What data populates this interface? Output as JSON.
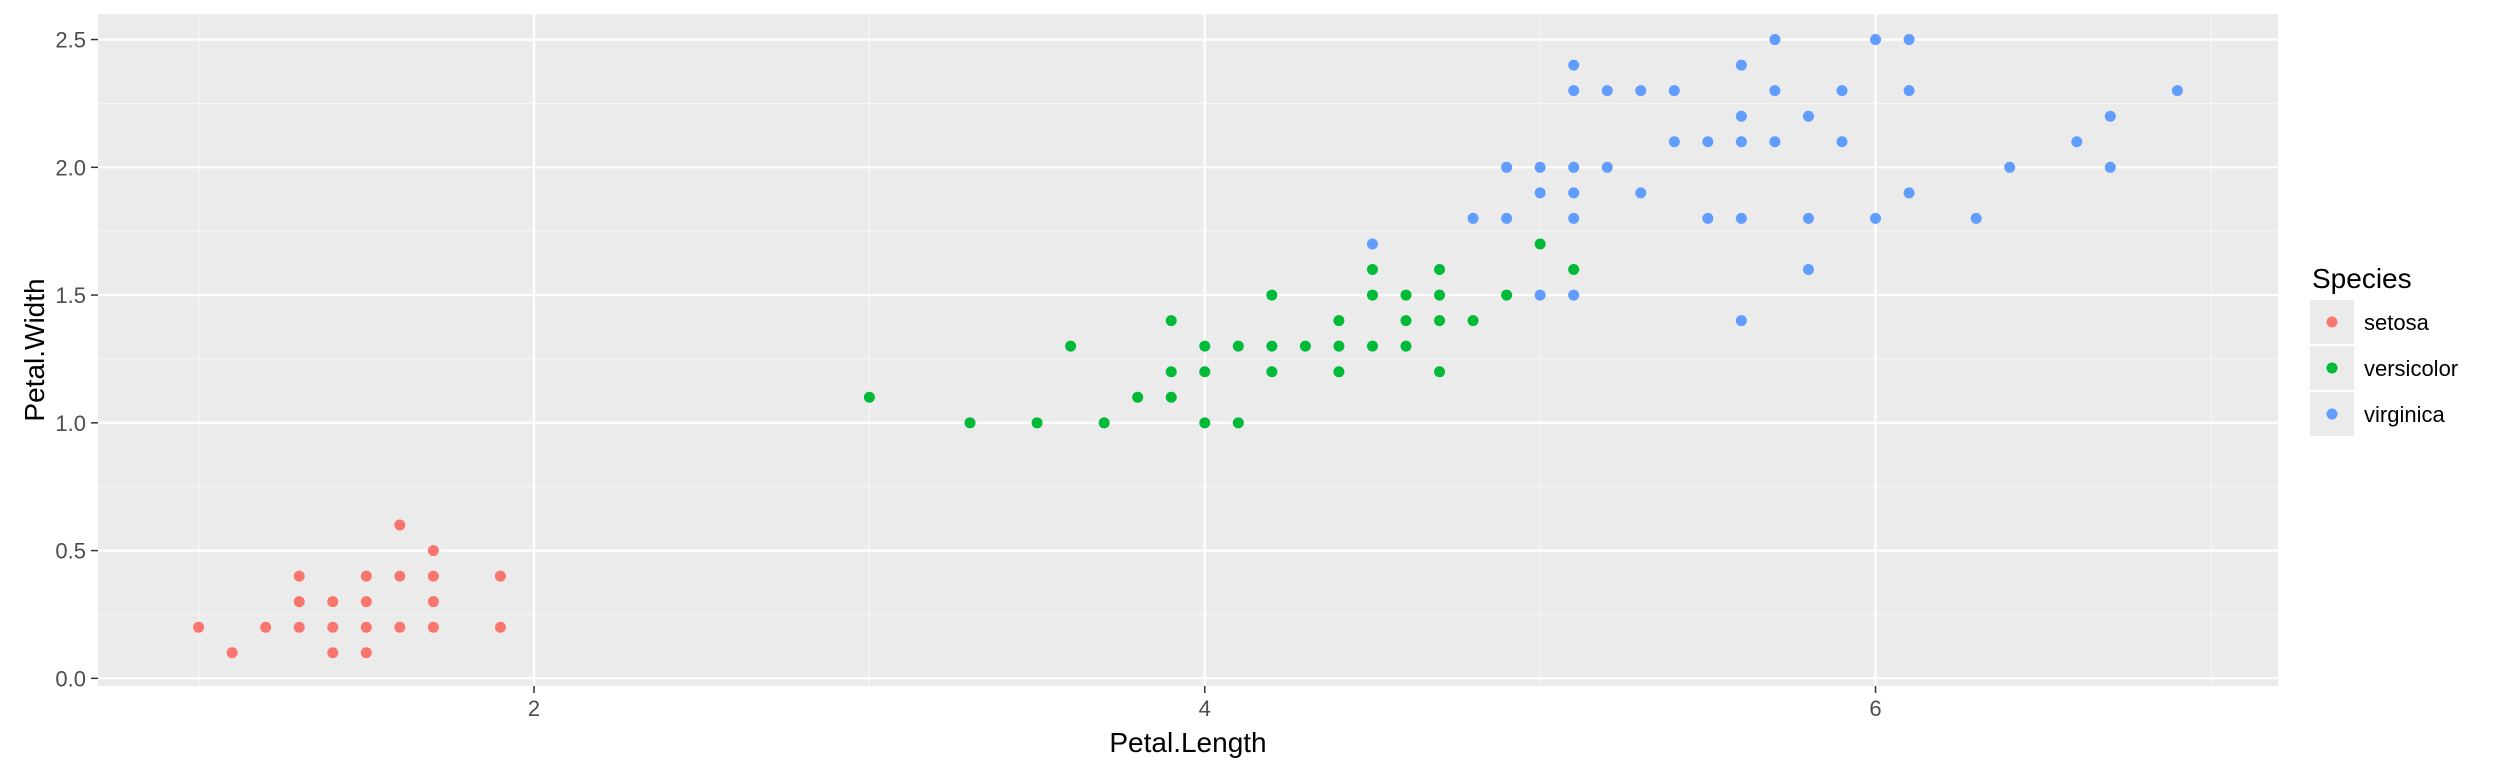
{
  "chart_data": {
    "type": "scatter",
    "xlabel": "Petal.Length",
    "ylabel": "Petal.Width",
    "xlim": [
      0.7,
      7.2
    ],
    "ylim": [
      -0.03,
      2.6
    ],
    "x_ticks": [
      2,
      4,
      6
    ],
    "x_tick_labels": [
      "2",
      "4",
      "6"
    ],
    "y_ticks": [
      0.0,
      0.5,
      1.0,
      1.5,
      2.0,
      2.5
    ],
    "y_tick_labels": [
      "0.0",
      "0.5",
      "1.0",
      "1.5",
      "2.0",
      "2.5"
    ],
    "grid": true,
    "legend": {
      "title": "Species",
      "position": "right"
    },
    "series": [
      {
        "name": "setosa",
        "color": "#F8766D",
        "points": [
          [
            1.0,
            0.2
          ],
          [
            1.1,
            0.1
          ],
          [
            1.2,
            0.2
          ],
          [
            1.3,
            0.2
          ],
          [
            1.3,
            0.3
          ],
          [
            1.3,
            0.4
          ],
          [
            1.4,
            0.1
          ],
          [
            1.4,
            0.2
          ],
          [
            1.4,
            0.3
          ],
          [
            1.5,
            0.1
          ],
          [
            1.5,
            0.2
          ],
          [
            1.5,
            0.3
          ],
          [
            1.5,
            0.4
          ],
          [
            1.6,
            0.2
          ],
          [
            1.6,
            0.4
          ],
          [
            1.6,
            0.6
          ],
          [
            1.7,
            0.2
          ],
          [
            1.7,
            0.3
          ],
          [
            1.7,
            0.4
          ],
          [
            1.7,
            0.5
          ],
          [
            1.9,
            0.2
          ],
          [
            1.9,
            0.4
          ]
        ]
      },
      {
        "name": "versicolor",
        "color": "#00BA38",
        "points": [
          [
            3.0,
            1.1
          ],
          [
            3.3,
            1.0
          ],
          [
            3.5,
            1.0
          ],
          [
            3.6,
            1.3
          ],
          [
            3.7,
            1.0
          ],
          [
            3.8,
            1.1
          ],
          [
            3.9,
            1.1
          ],
          [
            3.9,
            1.2
          ],
          [
            3.9,
            1.4
          ],
          [
            4.0,
            1.0
          ],
          [
            4.0,
            1.2
          ],
          [
            4.0,
            1.3
          ],
          [
            4.1,
            1.0
          ],
          [
            4.1,
            1.3
          ],
          [
            4.2,
            1.2
          ],
          [
            4.2,
            1.3
          ],
          [
            4.2,
            1.5
          ],
          [
            4.3,
            1.3
          ],
          [
            4.4,
            1.2
          ],
          [
            4.4,
            1.3
          ],
          [
            4.4,
            1.4
          ],
          [
            4.5,
            1.3
          ],
          [
            4.5,
            1.5
          ],
          [
            4.5,
            1.6
          ],
          [
            4.6,
            1.3
          ],
          [
            4.6,
            1.4
          ],
          [
            4.6,
            1.5
          ],
          [
            4.7,
            1.2
          ],
          [
            4.7,
            1.4
          ],
          [
            4.7,
            1.5
          ],
          [
            4.7,
            1.6
          ],
          [
            4.8,
            1.4
          ],
          [
            4.9,
            1.5
          ],
          [
            5.0,
            1.7
          ],
          [
            5.1,
            1.6
          ]
        ]
      },
      {
        "name": "virginica",
        "color": "#619CFF",
        "points": [
          [
            4.5,
            1.7
          ],
          [
            4.8,
            1.8
          ],
          [
            4.9,
            1.8
          ],
          [
            4.9,
            2.0
          ],
          [
            5.0,
            1.5
          ],
          [
            5.0,
            1.9
          ],
          [
            5.0,
            2.0
          ],
          [
            5.1,
            1.5
          ],
          [
            5.1,
            1.8
          ],
          [
            5.1,
            1.9
          ],
          [
            5.1,
            2.0
          ],
          [
            5.1,
            2.3
          ],
          [
            5.1,
            2.4
          ],
          [
            5.2,
            2.0
          ],
          [
            5.2,
            2.3
          ],
          [
            5.3,
            1.9
          ],
          [
            5.3,
            2.3
          ],
          [
            5.4,
            2.1
          ],
          [
            5.4,
            2.3
          ],
          [
            5.5,
            1.8
          ],
          [
            5.5,
            2.1
          ],
          [
            5.6,
            1.4
          ],
          [
            5.6,
            1.8
          ],
          [
            5.6,
            2.1
          ],
          [
            5.6,
            2.2
          ],
          [
            5.6,
            2.4
          ],
          [
            5.7,
            2.1
          ],
          [
            5.7,
            2.3
          ],
          [
            5.7,
            2.5
          ],
          [
            5.8,
            1.6
          ],
          [
            5.8,
            1.8
          ],
          [
            5.8,
            2.2
          ],
          [
            5.9,
            2.1
          ],
          [
            5.9,
            2.3
          ],
          [
            6.0,
            1.8
          ],
          [
            6.0,
            2.5
          ],
          [
            6.1,
            1.9
          ],
          [
            6.1,
            2.3
          ],
          [
            6.1,
            2.5
          ],
          [
            6.3,
            1.8
          ],
          [
            6.4,
            2.0
          ],
          [
            6.6,
            2.1
          ],
          [
            6.7,
            2.0
          ],
          [
            6.7,
            2.2
          ],
          [
            6.9,
            2.3
          ]
        ]
      }
    ]
  }
}
